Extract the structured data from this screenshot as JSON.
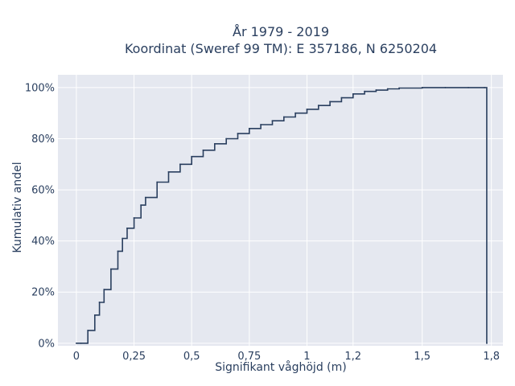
{
  "chart_data": {
    "type": "line",
    "title": "År 1979 - 2019",
    "subtitle": "Koordinat (Sweref 99 TM): E 357186, N 6250204",
    "xlabel": "Signifikant våghöjd (m)",
    "ylabel": "Kumulativ andel",
    "xlim": [
      -0.08,
      1.85
    ],
    "ylim": [
      -0.01,
      1.05
    ],
    "x_ticks": [
      0,
      0.25,
      0.5,
      0.75,
      1,
      1.2,
      1.5,
      1.8
    ],
    "x_tick_labels": [
      "0",
      "0,25",
      "0,5",
      "0,75",
      "1",
      "1,2",
      "1,5",
      "1,8"
    ],
    "y_ticks": [
      0,
      0.2,
      0.4,
      0.6,
      0.8,
      1.0
    ],
    "y_tick_labels": [
      "0%",
      "20%",
      "40%",
      "60%",
      "80%",
      "100%"
    ],
    "grid": true,
    "step": true,
    "series": [
      {
        "color": "#2a3f5f",
        "x": [
          0.0,
          0.02,
          0.05,
          0.08,
          0.1,
          0.12,
          0.15,
          0.18,
          0.2,
          0.22,
          0.25,
          0.28,
          0.3,
          0.35,
          0.4,
          0.45,
          0.5,
          0.55,
          0.6,
          0.65,
          0.7,
          0.75,
          0.8,
          0.85,
          0.9,
          0.95,
          1.0,
          1.05,
          1.1,
          1.15,
          1.2,
          1.25,
          1.3,
          1.35,
          1.4,
          1.5,
          1.6,
          1.7,
          1.77,
          1.78
        ],
        "y": [
          0.0,
          0.0,
          0.05,
          0.11,
          0.16,
          0.21,
          0.29,
          0.36,
          0.41,
          0.45,
          0.49,
          0.54,
          0.57,
          0.63,
          0.67,
          0.7,
          0.73,
          0.755,
          0.78,
          0.8,
          0.82,
          0.84,
          0.855,
          0.87,
          0.885,
          0.9,
          0.915,
          0.93,
          0.945,
          0.96,
          0.975,
          0.985,
          0.99,
          0.995,
          0.998,
          1.0,
          1.0,
          1.0,
          1.0,
          0.0
        ]
      }
    ]
  }
}
